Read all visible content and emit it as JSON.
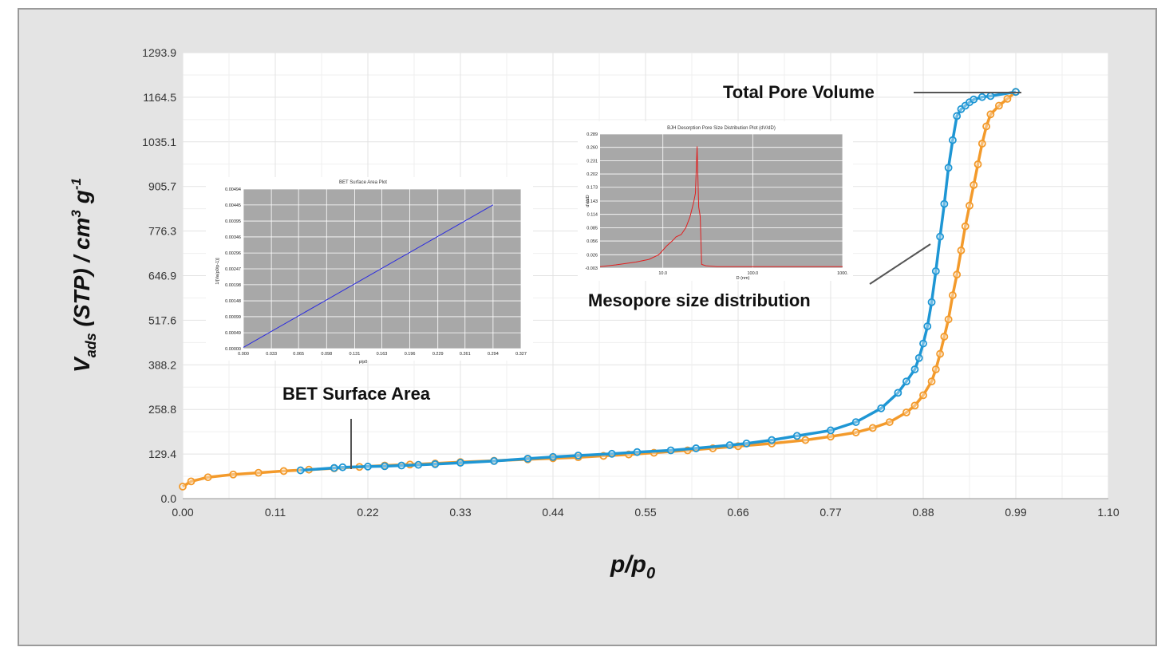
{
  "chart_data": {
    "type": "line",
    "xlabel": "p/p",
    "xlabel_sub": "0",
    "ylabel_v": "V",
    "ylabel_sub": "ads",
    "ylabel_rest": " (STP) / cm",
    "ylabel_sup1": "3",
    "ylabel_g": " g",
    "ylabel_sup2": "-1",
    "xlim": [
      0.0,
      1.1
    ],
    "ylim": [
      0.0,
      1293.9
    ],
    "x_ticks": [
      "0.00",
      "0.11",
      "0.22",
      "0.33",
      "0.44",
      "0.55",
      "0.66",
      "0.77",
      "0.88",
      "0.99",
      "1.10"
    ],
    "y_ticks": [
      "0.0",
      "129.4",
      "258.8",
      "388.2",
      "517.6",
      "646.9",
      "776.3",
      "905.7",
      "1035.1",
      "1164.5",
      "1293.9"
    ],
    "grid": true,
    "series": [
      {
        "color": "#1e96d4",
        "x": [
          0.14,
          0.18,
          0.19,
          0.22,
          0.24,
          0.26,
          0.28,
          0.3,
          0.33,
          0.37,
          0.41,
          0.44,
          0.47,
          0.51,
          0.54,
          0.58,
          0.61,
          0.65,
          0.67,
          0.7,
          0.73,
          0.77,
          0.8,
          0.83,
          0.85,
          0.86,
          0.87,
          0.875,
          0.88,
          0.885,
          0.89,
          0.895,
          0.9,
          0.905,
          0.91,
          0.915,
          0.92,
          0.925,
          0.93,
          0.935,
          0.94,
          0.95,
          0.96,
          0.99
        ],
        "y": [
          82,
          89,
          91,
          93,
          94,
          96,
          98,
          100,
          104,
          109,
          116,
          121,
          125,
          130,
          135,
          140,
          146,
          155,
          160,
          170,
          182,
          198,
          222,
          262,
          307,
          340,
          375,
          408,
          450,
          500,
          570,
          660,
          760,
          855,
          960,
          1040,
          1110,
          1130,
          1140,
          1150,
          1158,
          1165,
          1168,
          1180
        ]
      },
      {
        "color": "#f39a2b",
        "x": [
          0.0,
          0.01,
          0.03,
          0.06,
          0.09,
          0.12,
          0.15,
          0.18,
          0.21,
          0.24,
          0.27,
          0.3,
          0.33,
          0.37,
          0.41,
          0.44,
          0.47,
          0.5,
          0.53,
          0.56,
          0.6,
          0.63,
          0.66,
          0.7,
          0.74,
          0.77,
          0.8,
          0.82,
          0.84,
          0.86,
          0.87,
          0.88,
          0.89,
          0.895,
          0.9,
          0.905,
          0.91,
          0.915,
          0.92,
          0.925,
          0.93,
          0.935,
          0.94,
          0.945,
          0.95,
          0.955,
          0.96,
          0.97,
          0.98,
          0.99
        ],
        "y": [
          35,
          50,
          62,
          70,
          75,
          80,
          84,
          88,
          92,
          96,
          99,
          102,
          106,
          110,
          114,
          117,
          120,
          124,
          128,
          133,
          140,
          146,
          152,
          160,
          170,
          180,
          192,
          205,
          222,
          250,
          270,
          300,
          340,
          375,
          420,
          470,
          520,
          590,
          650,
          720,
          790,
          850,
          910,
          970,
          1030,
          1080,
          1115,
          1140,
          1160,
          1180
        ]
      }
    ],
    "annotations": {
      "total_pore_volume": "Total Pore Volume",
      "mesopore": "Mesopore size distribution",
      "bet_surface_area": "BET Surface Area"
    }
  },
  "inset_bet": {
    "title": "BET Surface Area Plot",
    "xlabel": "p/p0",
    "ylabel": "1/[Va(p0/p-1)]",
    "x_ticks": [
      "0.000",
      "0.033",
      "0.065",
      "0.098",
      "0.131",
      "0.163",
      "0.196",
      "0.229",
      "0.261",
      "0.294",
      "0.327"
    ],
    "y_ticks": [
      "0.00000",
      "0.00049",
      "0.00099",
      "0.00148",
      "0.00198",
      "0.00247",
      "0.00296",
      "0.00346",
      "0.00395",
      "0.00445",
      "0.00494"
    ],
    "xlim": [
      0.0,
      0.327
    ],
    "ylim": [
      0.0,
      0.00494
    ],
    "line": {
      "x": [
        0.0,
        0.294
      ],
      "y": [
        4e-05,
        0.00445
      ]
    },
    "line_color": "#2a2ae0"
  },
  "inset_bjh": {
    "title": "BJH Desorption Pore Size Distribution Plot (dV/dD)",
    "xlabel": "D (nm)",
    "ylabel": "dV/dD",
    "x_ticks": [
      "10.0",
      "100.0",
      "1000."
    ],
    "y_ticks": [
      "-0.003",
      "0.026",
      "0.056",
      "0.085",
      "0.114",
      "0.143",
      "0.173",
      "0.202",
      "0.231",
      "0.260",
      "0.289"
    ],
    "ylim": [
      -0.003,
      0.289
    ],
    "x": [
      2,
      3,
      5,
      7,
      9,
      11,
      13,
      14,
      16,
      18,
      20,
      22,
      23,
      24,
      25,
      26,
      27,
      30,
      40,
      100,
      1000
    ],
    "y": [
      0.0,
      0.004,
      0.01,
      0.016,
      0.026,
      0.045,
      0.058,
      0.065,
      0.07,
      0.085,
      0.108,
      0.14,
      0.16,
      0.262,
      0.13,
      0.11,
      0.005,
      0.002,
      0.0,
      0.0,
      0.0
    ],
    "line_color": "#e02020"
  }
}
